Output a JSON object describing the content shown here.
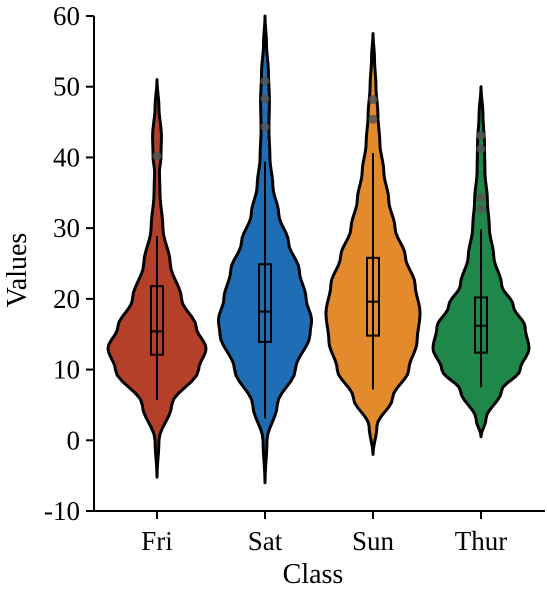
{
  "chart_data": {
    "type": "violin",
    "xlabel": "Class",
    "ylabel": "Values",
    "ylim": [
      -10,
      60
    ],
    "yticks": [
      -10,
      0,
      10,
      20,
      30,
      40,
      50,
      60
    ],
    "grid": false,
    "categories": [
      "Fri",
      "Sat",
      "Sun",
      "Thur"
    ],
    "series": [
      {
        "category": "Fri",
        "color": "#b5402a",
        "box": {
          "q1": 12.1,
          "median": 15.4,
          "q3": 21.8,
          "whisker_low": 5.7,
          "whisker_high": 28.9
        },
        "outliers": [
          40.2
        ],
        "density": [
          [
            -5.2,
            0.0
          ],
          [
            0,
            0.04
          ],
          [
            5,
            0.3
          ],
          [
            10,
            0.85
          ],
          [
            13,
            1.0
          ],
          [
            16,
            0.8
          ],
          [
            20,
            0.5
          ],
          [
            25,
            0.27
          ],
          [
            30,
            0.12
          ],
          [
            35,
            0.06
          ],
          [
            38,
            0.05
          ],
          [
            40,
            0.08
          ],
          [
            43,
            0.09
          ],
          [
            47,
            0.04
          ],
          [
            51,
            0.0
          ]
        ]
      },
      {
        "category": "Sat",
        "color": "#1f6eb5",
        "box": {
          "q1": 13.9,
          "median": 18.2,
          "q3": 24.9,
          "whisker_low": 3.1,
          "whisker_high": 39.4
        },
        "outliers": [
          44.3,
          48.3,
          50.8
        ],
        "density": [
          [
            -6,
            0.0
          ],
          [
            0,
            0.04
          ],
          [
            5,
            0.25
          ],
          [
            10,
            0.62
          ],
          [
            15,
            0.92
          ],
          [
            17,
            0.95
          ],
          [
            20,
            0.84
          ],
          [
            24,
            0.7
          ],
          [
            28,
            0.48
          ],
          [
            32,
            0.28
          ],
          [
            36,
            0.16
          ],
          [
            40,
            0.1
          ],
          [
            44,
            0.08
          ],
          [
            48,
            0.09
          ],
          [
            52,
            0.07
          ],
          [
            56,
            0.03
          ],
          [
            60,
            0.0
          ]
        ]
      },
      {
        "category": "Sun",
        "color": "#e38b2c",
        "box": {
          "q1": 14.8,
          "median": 19.6,
          "q3": 25.8,
          "whisker_low": 7.2,
          "whisker_high": 40.6
        },
        "outliers": [
          45.4,
          48.2
        ],
        "density": [
          [
            -2,
            0.0
          ],
          [
            2,
            0.08
          ],
          [
            6,
            0.4
          ],
          [
            10,
            0.73
          ],
          [
            14,
            0.9
          ],
          [
            18,
            0.96
          ],
          [
            22,
            0.86
          ],
          [
            26,
            0.66
          ],
          [
            30,
            0.45
          ],
          [
            34,
            0.32
          ],
          [
            38,
            0.22
          ],
          [
            42,
            0.14
          ],
          [
            46,
            0.1
          ],
          [
            50,
            0.06
          ],
          [
            54,
            0.03
          ],
          [
            57.5,
            0.0
          ]
        ]
      },
      {
        "category": "Thur",
        "color": "#20874b",
        "box": {
          "q1": 12.4,
          "median": 16.2,
          "q3": 20.2,
          "whisker_low": 7.5,
          "whisker_high": 29.8
        },
        "outliers": [
          32.7,
          34.3,
          41.2,
          43.1
        ],
        "density": [
          [
            0.5,
            0.0
          ],
          [
            3,
            0.1
          ],
          [
            7,
            0.42
          ],
          [
            10,
            0.8
          ],
          [
            13,
            0.98
          ],
          [
            16,
            0.9
          ],
          [
            19,
            0.66
          ],
          [
            22,
            0.42
          ],
          [
            26,
            0.26
          ],
          [
            30,
            0.17
          ],
          [
            34,
            0.13
          ],
          [
            38,
            0.08
          ],
          [
            42,
            0.07
          ],
          [
            46,
            0.04
          ],
          [
            50,
            0.0
          ]
        ]
      }
    ]
  }
}
